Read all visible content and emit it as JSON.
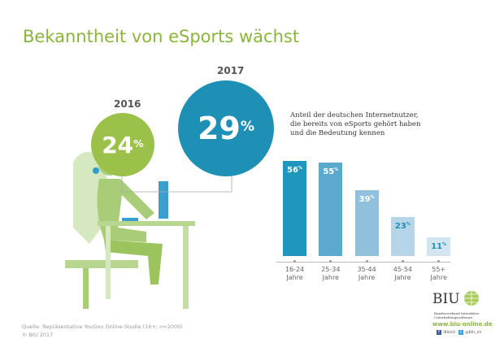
{
  "title": "Bekanntheit von eSports wächst",
  "circles": [
    {
      "year": "2016",
      "value": "24",
      "unit": "%",
      "color": "#9cc14a"
    },
    {
      "year": "2017",
      "value": "29",
      "unit": "%",
      "color": "#1e8fb5"
    }
  ],
  "description": "Anteil der deutschen Internetnutzer, die bereits von eSports gehört haben und die Bedeutung kennen",
  "chart_data": {
    "type": "bar",
    "categories": [
      "16-24 Jahre",
      "25-34 Jahre",
      "35-44 Jahre",
      "45-54 Jahre",
      "55+ Jahre"
    ],
    "values": [
      56,
      55,
      39,
      23,
      11
    ],
    "labels": [
      "56",
      "55",
      "39",
      "23",
      "11"
    ],
    "unit": "%",
    "colors": [
      "#1e96bd",
      "#5ca9cd",
      "#90c0dc",
      "#b6d5e8",
      "#d3e5f1"
    ],
    "ylim": [
      0,
      60
    ],
    "grid": false
  },
  "categories_split": [
    [
      "16-24",
      "Jahre"
    ],
    [
      "25-34",
      "Jahre"
    ],
    [
      "35-44",
      "Jahre"
    ],
    [
      "45-54",
      "Jahre"
    ],
    [
      "55+",
      "Jahre"
    ]
  ],
  "footer": {
    "source": "Quelle: Repräsentative YouGov Online-Studie (16+; n=2000)",
    "copyright": "© BIU 2017"
  },
  "logo": {
    "name": "BIU",
    "subtitle": "Bundesverband Interaktive Unterhaltungssoftware",
    "url": "www.biu-online.de",
    "facebook": "/BIUeV",
    "twitter": "@BIU_eV"
  }
}
